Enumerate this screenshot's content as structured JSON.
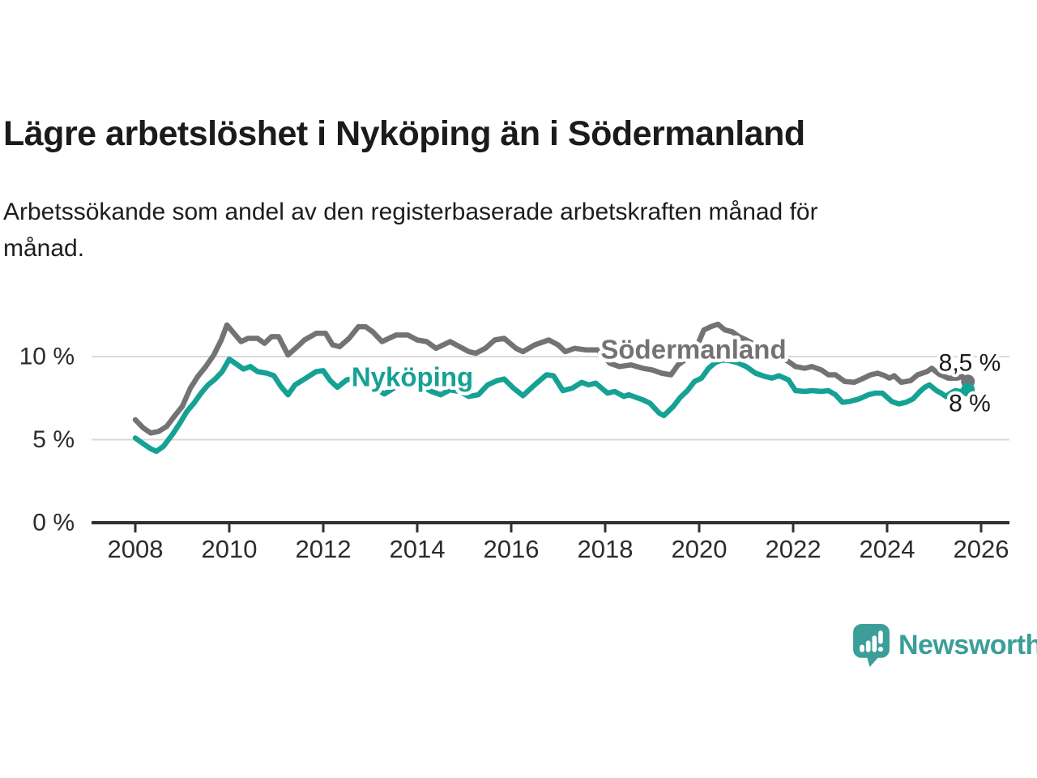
{
  "header": {
    "title": "Lägre arbetslöshet i Nyköping än i Södermanland",
    "subtitle_lines": [
      "Arbetssökande som andel av den registerbaserade arbetskraften månad för",
      "månad."
    ]
  },
  "footer": {
    "brand": "Newsworthy",
    "logo_icon": "speech-bubble-bar-chart"
  },
  "chart_data": {
    "type": "line",
    "title": "Lägre arbetslöshet i Nyköping än i Södermanland",
    "subtitle": "Arbetssökande som andel av den registerbaserade arbetskraften månad för månad.",
    "xlabel": "",
    "ylabel": "",
    "grid": "horizontal",
    "legend": "inline-labels",
    "xlim": [
      2007.6,
      2026.6
    ],
    "ylim": [
      0,
      12.5
    ],
    "x_ticks": [
      2008,
      2010,
      2012,
      2014,
      2016,
      2018,
      2020,
      2022,
      2024,
      2026
    ],
    "y_ticks": [
      {
        "value": 0,
        "label": "0 %"
      },
      {
        "value": 5,
        "label": "5 %"
      },
      {
        "value": 10,
        "label": "10 %"
      }
    ],
    "axis_color": "#303030",
    "grid_color": "#d9d9d9",
    "tick_text_color": "#2c2c2c",
    "value_label_color": "#1b1b1b",
    "series": [
      {
        "name": "Södermanland",
        "color": "#737376",
        "end_label": "8,5 %",
        "last_value": 8.5,
        "points": [
          [
            2008.0,
            6.2
          ],
          [
            2008.17,
            5.7
          ],
          [
            2008.33,
            5.4
          ],
          [
            2008.5,
            5.5
          ],
          [
            2008.67,
            5.8
          ],
          [
            2008.83,
            6.4
          ],
          [
            2009.0,
            7.0
          ],
          [
            2009.17,
            8.1
          ],
          [
            2009.33,
            8.8
          ],
          [
            2009.5,
            9.4
          ],
          [
            2009.67,
            10.1
          ],
          [
            2009.83,
            11.0
          ],
          [
            2009.95,
            11.9
          ],
          [
            2010.1,
            11.4
          ],
          [
            2010.25,
            10.9
          ],
          [
            2010.4,
            11.1
          ],
          [
            2010.6,
            11.1
          ],
          [
            2010.75,
            10.8
          ],
          [
            2010.9,
            11.2
          ],
          [
            2011.05,
            11.2
          ],
          [
            2011.25,
            10.1
          ],
          [
            2011.45,
            10.6
          ],
          [
            2011.6,
            11.0
          ],
          [
            2011.85,
            11.4
          ],
          [
            2012.05,
            11.4
          ],
          [
            2012.2,
            10.7
          ],
          [
            2012.35,
            10.6
          ],
          [
            2012.55,
            11.1
          ],
          [
            2012.75,
            11.8
          ],
          [
            2012.9,
            11.8
          ],
          [
            2013.05,
            11.5
          ],
          [
            2013.25,
            10.9
          ],
          [
            2013.55,
            11.3
          ],
          [
            2013.8,
            11.3
          ],
          [
            2014.0,
            11.0
          ],
          [
            2014.2,
            10.9
          ],
          [
            2014.4,
            10.5
          ],
          [
            2014.7,
            10.9
          ],
          [
            2014.9,
            10.6
          ],
          [
            2015.1,
            10.3
          ],
          [
            2015.25,
            10.2
          ],
          [
            2015.45,
            10.5
          ],
          [
            2015.65,
            11.0
          ],
          [
            2015.85,
            11.1
          ],
          [
            2016.1,
            10.5
          ],
          [
            2016.25,
            10.3
          ],
          [
            2016.5,
            10.7
          ],
          [
            2016.8,
            11.0
          ],
          [
            2017.0,
            10.7
          ],
          [
            2017.15,
            10.3
          ],
          [
            2017.35,
            10.5
          ],
          [
            2017.6,
            10.4
          ],
          [
            2017.85,
            10.4
          ],
          [
            2018.1,
            9.6
          ],
          [
            2018.3,
            9.4
          ],
          [
            2018.55,
            9.5
          ],
          [
            2018.8,
            9.3
          ],
          [
            2019.0,
            9.2
          ],
          [
            2019.2,
            9.0
          ],
          [
            2019.4,
            8.9
          ],
          [
            2019.55,
            9.5
          ],
          [
            2019.75,
            9.9
          ],
          [
            2019.95,
            10.6
          ],
          [
            2020.1,
            11.6
          ],
          [
            2020.25,
            11.8
          ],
          [
            2020.4,
            11.95
          ],
          [
            2020.55,
            11.6
          ],
          [
            2020.7,
            11.5
          ],
          [
            2020.85,
            11.2
          ],
          [
            2021.0,
            11.0
          ],
          [
            2021.2,
            10.7
          ],
          [
            2021.5,
            10.2
          ],
          [
            2021.7,
            10.0
          ],
          [
            2021.9,
            9.7
          ],
          [
            2022.05,
            9.4
          ],
          [
            2022.25,
            9.3
          ],
          [
            2022.4,
            9.4
          ],
          [
            2022.6,
            9.2
          ],
          [
            2022.75,
            8.9
          ],
          [
            2022.9,
            8.9
          ],
          [
            2023.1,
            8.5
          ],
          [
            2023.3,
            8.45
          ],
          [
            2023.5,
            8.7
          ],
          [
            2023.65,
            8.9
          ],
          [
            2023.8,
            9.0
          ],
          [
            2023.95,
            8.85
          ],
          [
            2024.05,
            8.7
          ],
          [
            2024.15,
            8.85
          ],
          [
            2024.3,
            8.45
          ],
          [
            2024.5,
            8.55
          ],
          [
            2024.65,
            8.9
          ],
          [
            2024.85,
            9.1
          ],
          [
            2024.95,
            9.3
          ],
          [
            2025.1,
            8.95
          ],
          [
            2025.3,
            8.7
          ],
          [
            2025.5,
            8.7
          ],
          [
            2025.6,
            8.8
          ],
          [
            2025.72,
            8.5
          ]
        ]
      },
      {
        "name": "Nyköping",
        "color": "#16a195",
        "end_label": "8 %",
        "last_value": 8.0,
        "points": [
          [
            2008.0,
            5.1
          ],
          [
            2008.17,
            4.75
          ],
          [
            2008.33,
            4.45
          ],
          [
            2008.45,
            4.3
          ],
          [
            2008.6,
            4.6
          ],
          [
            2008.8,
            5.35
          ],
          [
            2008.95,
            6.0
          ],
          [
            2009.1,
            6.7
          ],
          [
            2009.25,
            7.2
          ],
          [
            2009.4,
            7.8
          ],
          [
            2009.55,
            8.3
          ],
          [
            2009.7,
            8.65
          ],
          [
            2009.85,
            9.1
          ],
          [
            2010.0,
            9.85
          ],
          [
            2010.15,
            9.55
          ],
          [
            2010.3,
            9.25
          ],
          [
            2010.45,
            9.4
          ],
          [
            2010.6,
            9.1
          ],
          [
            2010.8,
            9.0
          ],
          [
            2010.95,
            8.85
          ],
          [
            2011.1,
            8.2
          ],
          [
            2011.25,
            7.7
          ],
          [
            2011.4,
            8.3
          ],
          [
            2011.6,
            8.65
          ],
          [
            2011.85,
            9.1
          ],
          [
            2012.0,
            9.15
          ],
          [
            2012.15,
            8.55
          ],
          [
            2012.3,
            8.15
          ],
          [
            2012.5,
            8.6
          ],
          [
            2012.7,
            8.7
          ],
          [
            2012.9,
            8.6
          ],
          [
            2013.1,
            8.1
          ],
          [
            2013.3,
            7.75
          ],
          [
            2013.5,
            8.1
          ],
          [
            2013.7,
            8.4
          ],
          [
            2013.9,
            8.4
          ],
          [
            2014.1,
            8.2
          ],
          [
            2014.3,
            7.9
          ],
          [
            2014.5,
            7.7
          ],
          [
            2014.7,
            8.0
          ],
          [
            2014.9,
            7.9
          ],
          [
            2015.1,
            7.6
          ],
          [
            2015.3,
            7.7
          ],
          [
            2015.5,
            8.3
          ],
          [
            2015.7,
            8.55
          ],
          [
            2015.85,
            8.65
          ],
          [
            2016.05,
            8.1
          ],
          [
            2016.25,
            7.65
          ],
          [
            2016.5,
            8.3
          ],
          [
            2016.75,
            8.9
          ],
          [
            2016.9,
            8.85
          ],
          [
            2017.1,
            7.95
          ],
          [
            2017.3,
            8.1
          ],
          [
            2017.5,
            8.45
          ],
          [
            2017.65,
            8.3
          ],
          [
            2017.8,
            8.4
          ],
          [
            2018.05,
            7.8
          ],
          [
            2018.2,
            7.9
          ],
          [
            2018.4,
            7.6
          ],
          [
            2018.5,
            7.7
          ],
          [
            2018.65,
            7.55
          ],
          [
            2018.8,
            7.4
          ],
          [
            2018.95,
            7.2
          ],
          [
            2019.15,
            6.6
          ],
          [
            2019.25,
            6.45
          ],
          [
            2019.45,
            7.0
          ],
          [
            2019.6,
            7.55
          ],
          [
            2019.75,
            7.95
          ],
          [
            2019.9,
            8.5
          ],
          [
            2020.05,
            8.7
          ],
          [
            2020.2,
            9.3
          ],
          [
            2020.35,
            9.65
          ],
          [
            2020.5,
            9.8
          ],
          [
            2020.65,
            9.75
          ],
          [
            2020.8,
            9.65
          ],
          [
            2021.0,
            9.4
          ],
          [
            2021.2,
            9.0
          ],
          [
            2021.4,
            8.8
          ],
          [
            2021.55,
            8.7
          ],
          [
            2021.7,
            8.85
          ],
          [
            2021.9,
            8.6
          ],
          [
            2022.05,
            7.95
          ],
          [
            2022.25,
            7.9
          ],
          [
            2022.4,
            7.95
          ],
          [
            2022.6,
            7.9
          ],
          [
            2022.75,
            7.95
          ],
          [
            2022.9,
            7.7
          ],
          [
            2023.05,
            7.25
          ],
          [
            2023.2,
            7.3
          ],
          [
            2023.4,
            7.45
          ],
          [
            2023.6,
            7.7
          ],
          [
            2023.75,
            7.8
          ],
          [
            2023.9,
            7.8
          ],
          [
            2024.1,
            7.3
          ],
          [
            2024.25,
            7.15
          ],
          [
            2024.4,
            7.25
          ],
          [
            2024.55,
            7.45
          ],
          [
            2024.7,
            7.9
          ],
          [
            2024.8,
            8.15
          ],
          [
            2024.9,
            8.3
          ],
          [
            2025.05,
            7.95
          ],
          [
            2025.15,
            7.8
          ],
          [
            2025.25,
            7.6
          ],
          [
            2025.35,
            7.8
          ],
          [
            2025.45,
            7.95
          ],
          [
            2025.55,
            7.9
          ],
          [
            2025.72,
            8.0
          ]
        ]
      }
    ]
  }
}
